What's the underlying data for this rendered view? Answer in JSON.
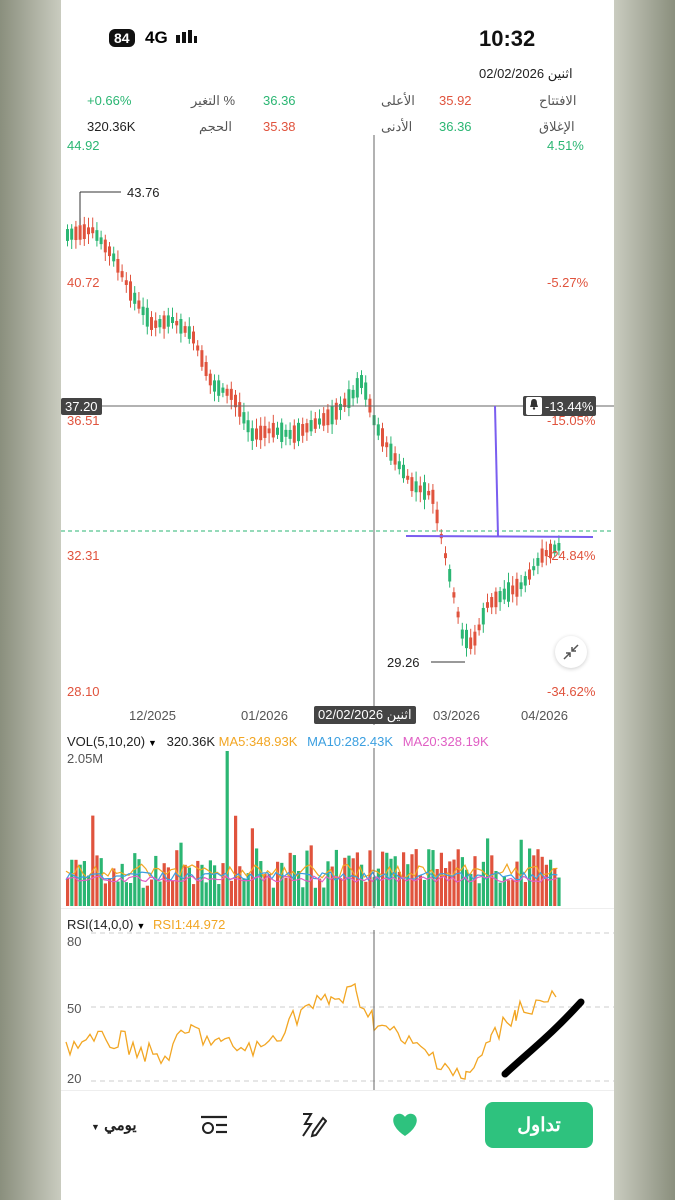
{
  "status": {
    "battery": "84",
    "network": "4G",
    "time": "10:32"
  },
  "header": {
    "date": "اثنين 02/02/2026",
    "stats": {
      "open_label": "الافتتاح",
      "open": "35.92",
      "high_label": "الأعلى",
      "high": "36.36",
      "change_label": "التغير %",
      "change": "+0.66%",
      "close_label": "الإغلاق",
      "close": "36.36",
      "low_label": "الأدنى",
      "low": "35.38",
      "volume_label": "الحجم",
      "volume": "320.36K"
    }
  },
  "price_chart": {
    "left_axis": [
      "44.92",
      "40.72",
      "36.51",
      "32.31",
      "28.10"
    ],
    "right_axis": [
      "4.51%",
      "-5.27%",
      "-15.05%",
      "-24.84%",
      "-34.62%"
    ],
    "crosshair_price": "37.20",
    "crosshair_pct": "-13.44%",
    "max_label": "43.76",
    "min_label": "29.26",
    "x_labels": [
      "12/2025",
      "01/2026",
      "03/2026",
      "04/2026"
    ],
    "crosshair_date": "اثنين 02/02/2026"
  },
  "volume_panel": {
    "title": "VOL(5,10,20)",
    "volume": "320.36K",
    "ma5": "MA5:348.93K",
    "ma10": "MA10:282.43K",
    "ma20": "MA20:328.19K",
    "max": "2.05M",
    "colors": {
      "ma5": "#f2a623",
      "ma10": "#3b9fe0",
      "ma20": "#e05fc4"
    }
  },
  "rsi_panel": {
    "title": "RSI(14,0,0)",
    "value": "RSI1:44.972",
    "levels": [
      "80",
      "50",
      "20"
    ]
  },
  "bottom_nav": {
    "period": "يومي",
    "trade": "تداول"
  },
  "colors": {
    "up": "#2bb673",
    "down": "#e0533d",
    "accent": "#2ec27e"
  }
}
